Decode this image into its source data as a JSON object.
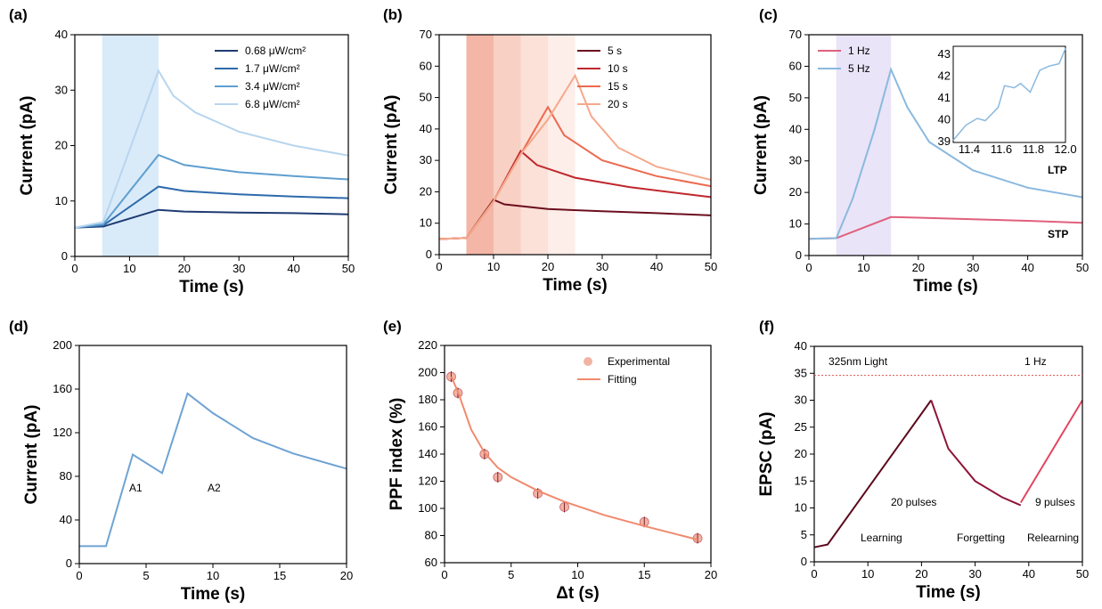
{
  "chart_data": [
    {
      "panel": "(a)",
      "type": "line",
      "xlabel": "Time (s)",
      "ylabel": "Current (pA)",
      "xlim": [
        0,
        50
      ],
      "ylim": [
        0,
        40
      ],
      "xticks": [
        "0",
        "10",
        "20",
        "30",
        "40",
        "50"
      ],
      "yticks": [
        "0",
        "10",
        "20",
        "30",
        "40"
      ],
      "shaded": [
        {
          "x0": 5,
          "x1": 15.3,
          "color": "#d9eaf9"
        }
      ],
      "legend_position": "top-right",
      "series": [
        {
          "name": "0.68 μW/cm²",
          "color": "#1f3b72",
          "points": [
            [
              0,
              5.2
            ],
            [
              5.2,
              5.4
            ],
            [
              15.3,
              8.4
            ],
            [
              20,
              8.1
            ],
            [
              30,
              7.9
            ],
            [
              40,
              7.8
            ],
            [
              50,
              7.6
            ]
          ]
        },
        {
          "name": "1.7 μW/cm²",
          "color": "#2e6aab",
          "points": [
            [
              0,
              5.2
            ],
            [
              5.2,
              5.6
            ],
            [
              15.3,
              12.6
            ],
            [
              20,
              11.8
            ],
            [
              30,
              11.2
            ],
            [
              40,
              10.8
            ],
            [
              50,
              10.5
            ]
          ]
        },
        {
          "name": "3.4 μW/cm²",
          "color": "#5f9fd0",
          "points": [
            [
              0,
              5.2
            ],
            [
              5.2,
              5.8
            ],
            [
              15.3,
              18.3
            ],
            [
              20,
              16.5
            ],
            [
              30,
              15.2
            ],
            [
              40,
              14.5
            ],
            [
              50,
              13.9
            ]
          ]
        },
        {
          "name": "6.8 μW/cm²",
          "color": "#b8d5ee",
          "points": [
            [
              0,
              5.2
            ],
            [
              5.2,
              6.2
            ],
            [
              15.3,
              33.5
            ],
            [
              18,
              29
            ],
            [
              22,
              26
            ],
            [
              30,
              22.5
            ],
            [
              40,
              20
            ],
            [
              50,
              18.2
            ]
          ]
        }
      ]
    },
    {
      "panel": "(b)",
      "type": "line",
      "xlabel": "Time (s)",
      "ylabel": "Current (pA)",
      "xlim": [
        0,
        50
      ],
      "ylim": [
        0,
        70
      ],
      "xticks": [
        "0",
        "10",
        "20",
        "30",
        "40",
        "50"
      ],
      "yticks": [
        "0",
        "10",
        "20",
        "30",
        "40",
        "50",
        "60",
        "70"
      ],
      "shaded": [
        {
          "x0": 5,
          "x1": 10,
          "color": "#f4b6a6"
        },
        {
          "x0": 10,
          "x1": 15,
          "color": "#f8d0c4"
        },
        {
          "x0": 15,
          "x1": 20,
          "color": "#fbe1d8"
        },
        {
          "x0": 20,
          "x1": 25,
          "color": "#fdeee9"
        }
      ],
      "legend_position": "top-right",
      "series": [
        {
          "name": "5 s",
          "color": "#6b0e1e",
          "points": [
            [
              0,
              5
            ],
            [
              5,
              5.3
            ],
            [
              10,
              17.5
            ],
            [
              12,
              16
            ],
            [
              20,
              14.5
            ],
            [
              30,
              13.8
            ],
            [
              40,
              13.2
            ],
            [
              50,
              12.5
            ]
          ]
        },
        {
          "name": "10 s",
          "color": "#c0272d",
          "points": [
            [
              0,
              5
            ],
            [
              5,
              5.3
            ],
            [
              10,
              17
            ],
            [
              15,
              33
            ],
            [
              18,
              28.5
            ],
            [
              25,
              24.5
            ],
            [
              35,
              21.5
            ],
            [
              50,
              18.3
            ]
          ]
        },
        {
          "name": "15 s",
          "color": "#ec6a4f",
          "points": [
            [
              0,
              5
            ],
            [
              5,
              5.3
            ],
            [
              10,
              17
            ],
            [
              15,
              32
            ],
            [
              20,
              47
            ],
            [
              23,
              38
            ],
            [
              30,
              30
            ],
            [
              40,
              25
            ],
            [
              50,
              21.8
            ]
          ]
        },
        {
          "name": "20 s",
          "color": "#f5a98c",
          "points": [
            [
              0,
              5
            ],
            [
              5,
              5.3
            ],
            [
              10,
              17
            ],
            [
              15,
              32
            ],
            [
              20,
              43
            ],
            [
              25,
              57
            ],
            [
              28,
              44
            ],
            [
              33,
              34
            ],
            [
              40,
              28
            ],
            [
              50,
              23.8
            ]
          ]
        }
      ]
    },
    {
      "panel": "(c)",
      "type": "line",
      "xlabel": "Time (s)",
      "ylabel": "Current (pA)",
      "xlim": [
        0,
        50
      ],
      "ylim": [
        0,
        70
      ],
      "xticks": [
        "0",
        "10",
        "20",
        "30",
        "40",
        "50"
      ],
      "yticks": [
        "0",
        "10",
        "20",
        "30",
        "40",
        "50",
        "60",
        "70"
      ],
      "shaded": [
        {
          "x0": 5,
          "x1": 15,
          "color": "#e9e4f7"
        }
      ],
      "legend_position": "top-left",
      "annotations": [
        "LTP",
        "STP"
      ],
      "series": [
        {
          "name": "1 Hz",
          "color": "#e0607d",
          "points": [
            [
              0,
              5.3
            ],
            [
              5,
              5.5
            ],
            [
              15,
              12.2
            ],
            [
              20,
              12
            ],
            [
              30,
              11.5
            ],
            [
              40,
              11
            ],
            [
              50,
              10.4
            ]
          ]
        },
        {
          "name": "5 Hz",
          "color": "#8ab9df",
          "points": [
            [
              0,
              5.3
            ],
            [
              5,
              5.5
            ],
            [
              8,
              18
            ],
            [
              12,
              40
            ],
            [
              15,
              59
            ],
            [
              18,
              47
            ],
            [
              22,
              36
            ],
            [
              30,
              27
            ],
            [
              40,
              21.5
            ],
            [
              50,
              18.5
            ]
          ]
        }
      ],
      "inset": {
        "xlim": [
          11.3,
          12.0
        ],
        "ylim": [
          39,
          43.4
        ],
        "xticks": [
          "11.4",
          "11.6",
          "11.8",
          "12.0"
        ],
        "yticks": [
          "39",
          "40",
          "41",
          "42",
          "43"
        ],
        "points": [
          [
            11.3,
            39.1
          ],
          [
            11.38,
            39.8
          ],
          [
            11.45,
            40.1
          ],
          [
            11.5,
            40.0
          ],
          [
            11.58,
            40.6
          ],
          [
            11.62,
            41.6
          ],
          [
            11.68,
            41.5
          ],
          [
            11.72,
            41.7
          ],
          [
            11.78,
            41.3
          ],
          [
            11.84,
            42.3
          ],
          [
            11.9,
            42.5
          ],
          [
            11.96,
            42.6
          ],
          [
            12.0,
            43.3
          ]
        ]
      }
    },
    {
      "panel": "(d)",
      "type": "line",
      "xlabel": "Time (s)",
      "ylabel": "Current (pA)",
      "xlim": [
        0,
        20
      ],
      "ylim": [
        0,
        200
      ],
      "xticks": [
        "0",
        "5",
        "10",
        "15",
        "20"
      ],
      "yticks": [
        "0",
        "40",
        "80",
        "120",
        "160",
        "200"
      ],
      "annotations": [
        "A1",
        "A2"
      ],
      "series": [
        {
          "name": "",
          "color": "#6fa3d3",
          "points": [
            [
              0,
              16
            ],
            [
              2,
              16
            ],
            [
              4,
              100
            ],
            [
              6.2,
              83
            ],
            [
              8.1,
              156
            ],
            [
              10,
              138
            ],
            [
              13,
              115
            ],
            [
              16,
              101
            ],
            [
              20,
              87
            ]
          ]
        }
      ]
    },
    {
      "panel": "(e)",
      "type": "scatter",
      "xlabel": "Δt (s)",
      "ylabel": "PPF index (%)",
      "xlim": [
        0,
        20
      ],
      "ylim": [
        60,
        220
      ],
      "xticks": [
        "0",
        "5",
        "10",
        "15",
        "20"
      ],
      "yticks": [
        "60",
        "80",
        "100",
        "120",
        "140",
        "160",
        "180",
        "200",
        "220"
      ],
      "legend_position": "top-right",
      "series": [
        {
          "name": "Experimental",
          "color": "#f2b3a2",
          "x": [
            0.5,
            1,
            3,
            4,
            7,
            9,
            15,
            19
          ],
          "y": [
            197,
            185,
            140,
            123,
            111,
            101,
            90,
            78
          ]
        },
        {
          "name": "Fitting",
          "color": "#f08a6e",
          "x": [
            0.5,
            1,
            2,
            3,
            4,
            5,
            7,
            9,
            12,
            15,
            19
          ],
          "y": [
            197,
            186,
            158,
            141,
            130,
            123,
            113,
            105,
            95,
            87,
            77
          ]
        }
      ]
    },
    {
      "panel": "(f)",
      "type": "line",
      "xlabel": "Time (s)",
      "ylabel": "EPSC (pA)",
      "xlim": [
        0,
        50
      ],
      "ylim": [
        0,
        40
      ],
      "xticks": [
        "0",
        "10",
        "20",
        "30",
        "40",
        "50"
      ],
      "yticks": [
        "0",
        "5",
        "10",
        "15",
        "20",
        "25",
        "30",
        "35",
        "40"
      ],
      "annotations": [
        "325nm Light",
        "1 Hz",
        "20 pulses",
        "9 pulses",
        "Learning",
        "Forgetting",
        "Relearning"
      ],
      "reference_line": 34.6,
      "series": [
        {
          "name": "",
          "color": "#5c0a1c",
          "points": [
            [
              0,
              2.7
            ],
            [
              2.5,
              3.2
            ],
            [
              21.8,
              30
            ]
          ]
        },
        {
          "name": "",
          "color": "#8f1538",
          "points": [
            [
              21.8,
              30
            ],
            [
              25,
              21
            ],
            [
              30,
              15
            ],
            [
              35,
              12
            ],
            [
              38.5,
              10.5
            ]
          ]
        },
        {
          "name": "",
          "color": "#e3465f",
          "points": [
            [
              38.5,
              11
            ],
            [
              50,
              30
            ]
          ]
        }
      ]
    }
  ]
}
